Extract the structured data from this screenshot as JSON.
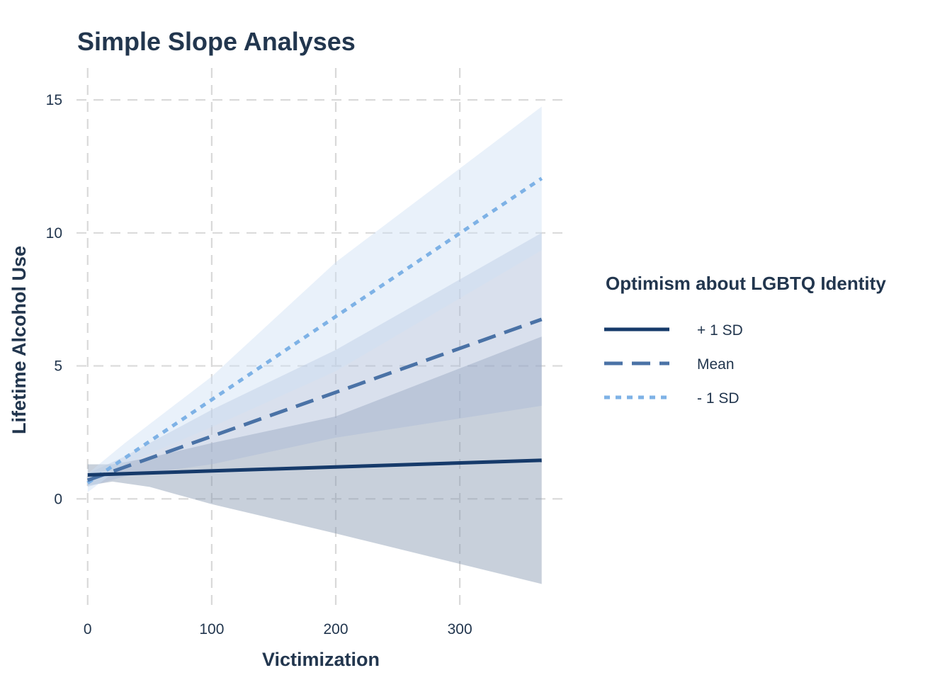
{
  "chart_data": {
    "type": "line",
    "title": "Simple Slope Analyses",
    "xlabel": "Victimization",
    "ylabel": "Lifetime Alcohol Use",
    "xlim": [
      -9,
      385
    ],
    "ylim": [
      -4.2,
      16.2
    ],
    "x_ticks": [
      0,
      100,
      200,
      300
    ],
    "y_ticks": [
      0,
      5,
      10,
      15
    ],
    "grid": true,
    "legend": {
      "title": "Optimism about LGBTQ Identity",
      "position": "right"
    },
    "series": [
      {
        "name": "+ 1 SD",
        "color": "#163a6a",
        "dash": "solid",
        "ribbon_color": "#8496b0",
        "points": [
          [
            0,
            0.9
          ],
          [
            366,
            1.45
          ]
        ],
        "ci_lower": [
          [
            0,
            0.5
          ],
          [
            20,
            0.65
          ],
          [
            50,
            0.45
          ],
          [
            100,
            -0.2
          ],
          [
            200,
            -1.3
          ],
          [
            366,
            -3.2
          ]
        ],
        "ci_upper": [
          [
            0,
            1.3
          ],
          [
            20,
            1.3
          ],
          [
            50,
            1.55
          ],
          [
            100,
            2.1
          ],
          [
            200,
            3.1
          ],
          [
            366,
            6.1
          ]
        ]
      },
      {
        "name": "Mean",
        "color": "#4a72a6",
        "dash": "dashed",
        "ribbon_color": "#aabbd6",
        "points": [
          [
            0,
            0.7
          ],
          [
            366,
            6.75
          ]
        ],
        "ci_lower": [
          [
            0,
            0.45
          ],
          [
            30,
            0.85
          ],
          [
            100,
            1.3
          ],
          [
            200,
            2.3
          ],
          [
            366,
            3.5
          ]
        ],
        "ci_upper": [
          [
            0,
            0.95
          ],
          [
            30,
            1.6
          ],
          [
            100,
            3.35
          ],
          [
            200,
            5.6
          ],
          [
            366,
            10.0
          ]
        ]
      },
      {
        "name": "- 1 SD",
        "color": "#7eb2e6",
        "dash": "dotted",
        "ribbon_color": "#cfe0f5",
        "points": [
          [
            0,
            0.6
          ],
          [
            366,
            12.05
          ]
        ],
        "ci_lower": [
          [
            0,
            0.25
          ],
          [
            30,
            1.3
          ],
          [
            100,
            2.7
          ],
          [
            200,
            4.8
          ],
          [
            366,
            9.35
          ]
        ],
        "ci_upper": [
          [
            0,
            0.95
          ],
          [
            30,
            2.1
          ],
          [
            100,
            4.6
          ],
          [
            200,
            8.9
          ],
          [
            366,
            14.75
          ]
        ]
      }
    ]
  }
}
